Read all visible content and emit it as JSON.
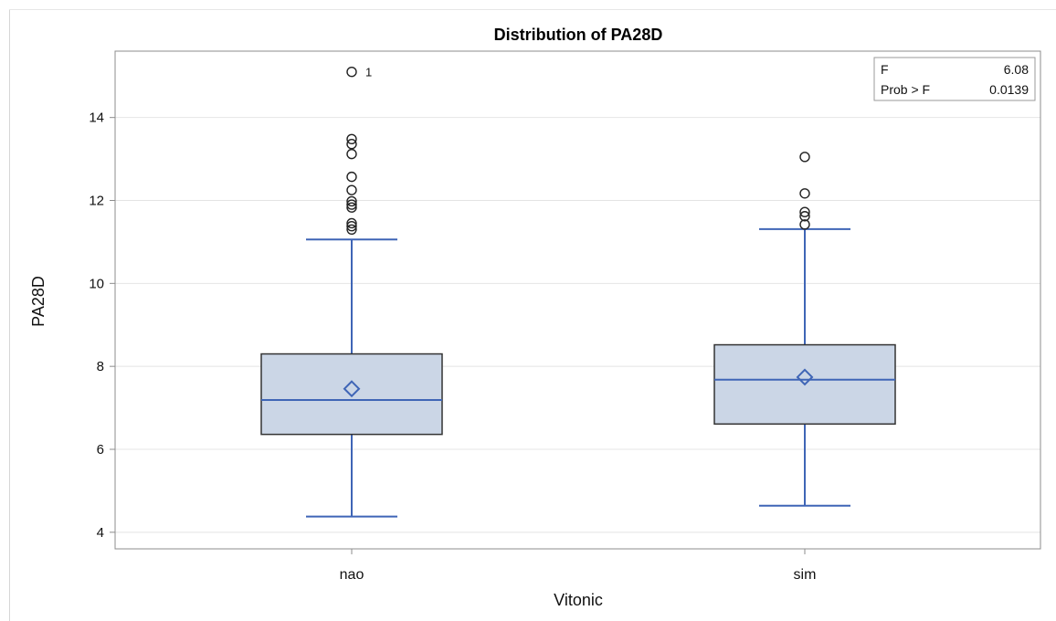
{
  "chart_data": {
    "type": "box",
    "title": "Distribution of PA28D",
    "xlabel": "Vitonic",
    "ylabel": "PA28D",
    "ylim": [
      3.6,
      15.6
    ],
    "yticks": [
      "4",
      "6",
      "8",
      "10",
      "12",
      "14"
    ],
    "grid": true,
    "categories": [
      "nao",
      "sim"
    ],
    "boxes": [
      {
        "category": "nao",
        "whisker_low": 4.38,
        "q1": 6.36,
        "median": 7.19,
        "mean": 7.46,
        "q3": 8.3,
        "whisker_high": 11.06,
        "outliers": [
          11.3,
          11.38,
          11.45,
          11.83,
          11.9,
          11.98,
          12.25,
          12.57,
          13.12,
          13.36,
          13.48,
          15.1
        ],
        "outlier_labels": [
          {
            "value": 15.1,
            "label": "1"
          }
        ]
      },
      {
        "category": "sim",
        "whisker_low": 4.64,
        "q1": 6.61,
        "median": 7.68,
        "mean": 7.74,
        "q3": 8.52,
        "whisker_high": 11.31,
        "outliers": [
          11.42,
          11.62,
          11.72,
          12.17,
          13.05
        ],
        "outlier_labels": []
      }
    ],
    "stats_box": {
      "placement": "top-right",
      "rows": [
        {
          "label": "F",
          "value": "6.08"
        },
        {
          "label": "Prob > F",
          "value": "0.0139"
        }
      ]
    },
    "colors": {
      "box_fill": "#cbd6e6",
      "box_edge": "#333333",
      "line": "#3f65b6",
      "grid": "#e4e4e4",
      "axis": "#8c8c8c"
    }
  }
}
